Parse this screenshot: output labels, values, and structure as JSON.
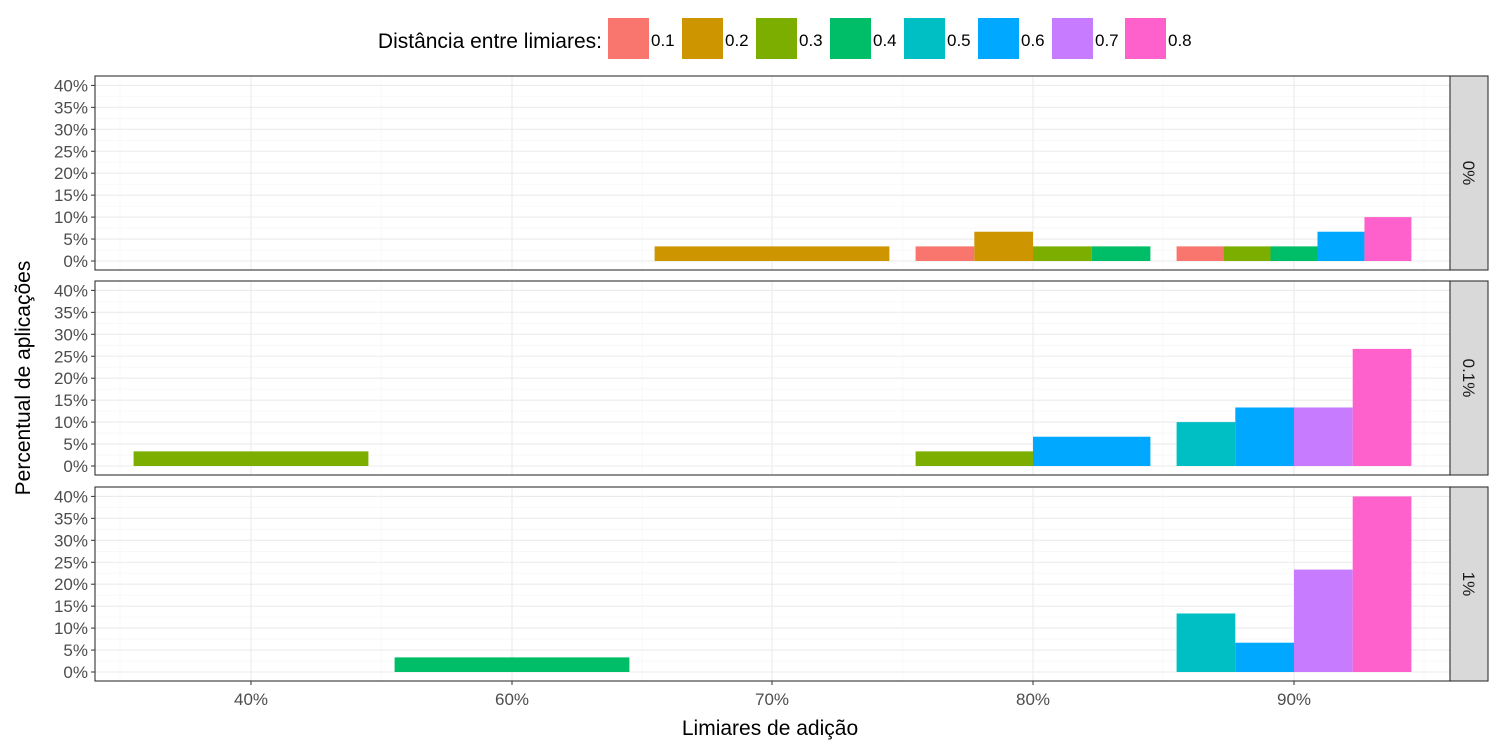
{
  "chart_data": {
    "type": "bar",
    "xlabel": "Limiares de adição",
    "ylabel": "Percentual de aplicações",
    "legend": {
      "title": "Distância entre limiares:",
      "position": "top",
      "entries": [
        {
          "label": "0.1",
          "color": "#F8766D"
        },
        {
          "label": "0.2",
          "color": "#CD9600"
        },
        {
          "label": "0.3",
          "color": "#7CAE00"
        },
        {
          "label": "0.4",
          "color": "#00BE67"
        },
        {
          "label": "0.5",
          "color": "#00BFC4"
        },
        {
          "label": "0.6",
          "color": "#00A9FF"
        },
        {
          "label": "0.7",
          "color": "#C77CFF"
        },
        {
          "label": "0.8",
          "color": "#FF61CC"
        }
      ]
    },
    "categories": [
      "40%",
      "60%",
      "70%",
      "80%",
      "90%"
    ],
    "y_ticks": [
      "0%",
      "5%",
      "10%",
      "15%",
      "20%",
      "25%",
      "30%",
      "35%",
      "40%"
    ],
    "ylim": [
      0,
      40
    ],
    "grid": true,
    "facets": [
      {
        "label": "0%",
        "groups": [
          {
            "category": "70%",
            "bars": [
              {
                "distance": "0.2",
                "value": 3.33
              }
            ]
          },
          {
            "category": "80%",
            "bars": [
              {
                "distance": "0.1",
                "value": 3.33
              },
              {
                "distance": "0.2",
                "value": 6.67
              },
              {
                "distance": "0.3",
                "value": 3.33
              },
              {
                "distance": "0.4",
                "value": 3.33
              }
            ]
          },
          {
            "category": "90%",
            "bars": [
              {
                "distance": "0.1",
                "value": 3.33
              },
              {
                "distance": "0.3",
                "value": 3.33
              },
              {
                "distance": "0.4",
                "value": 3.33
              },
              {
                "distance": "0.6",
                "value": 6.67
              },
              {
                "distance": "0.8",
                "value": 10
              }
            ]
          }
        ]
      },
      {
        "label": "0.1%",
        "groups": [
          {
            "category": "40%",
            "bars": [
              {
                "distance": "0.3",
                "value": 3.33
              }
            ]
          },
          {
            "category": "80%",
            "bars": [
              {
                "distance": "0.3",
                "value": 3.33
              },
              {
                "distance": "0.6",
                "value": 6.67
              }
            ]
          },
          {
            "category": "90%",
            "bars": [
              {
                "distance": "0.5",
                "value": 10
              },
              {
                "distance": "0.6",
                "value": 13.33
              },
              {
                "distance": "0.7",
                "value": 13.33
              },
              {
                "distance": "0.8",
                "value": 26.67
              }
            ]
          }
        ]
      },
      {
        "label": "1%",
        "groups": [
          {
            "category": "60%",
            "bars": [
              {
                "distance": "0.4",
                "value": 3.33
              }
            ]
          },
          {
            "category": "90%",
            "bars": [
              {
                "distance": "0.5",
                "value": 13.33
              },
              {
                "distance": "0.6",
                "value": 6.67
              },
              {
                "distance": "0.7",
                "value": 23.33
              },
              {
                "distance": "0.8",
                "value": 40
              }
            ]
          }
        ]
      }
    ]
  }
}
